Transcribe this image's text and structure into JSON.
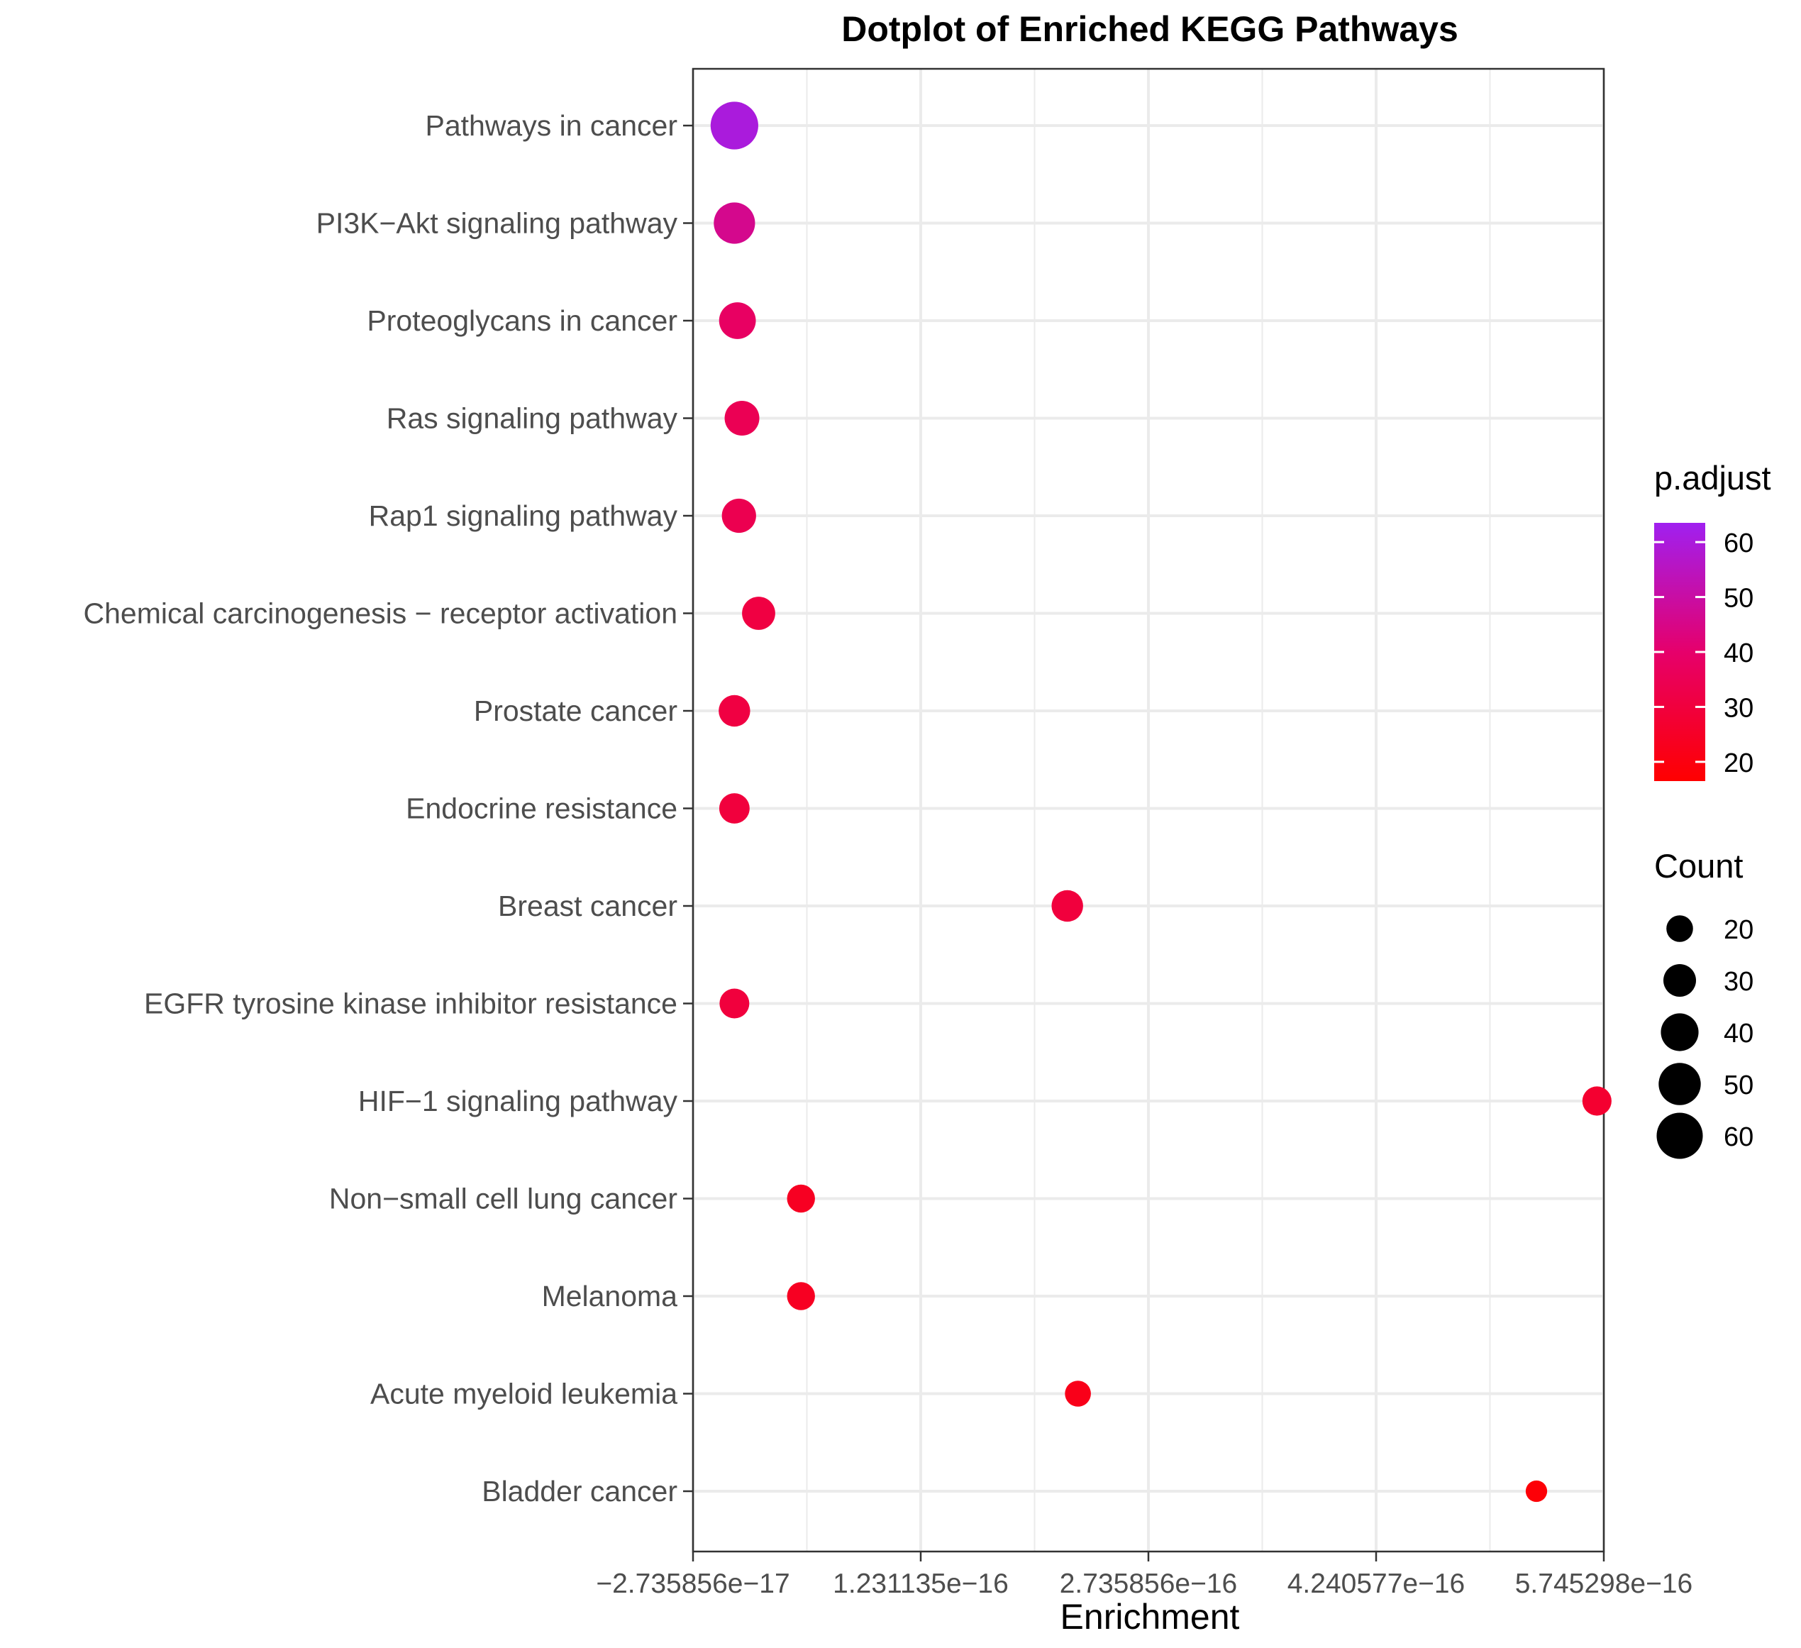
{
  "chart_data": {
    "type": "scatter",
    "title": "Dotplot of Enriched KEGG Pathways",
    "xlabel": "Enrichment",
    "ylabel": "",
    "xlim": [
      -2.735856e-17,
      5.745298e-16
    ],
    "x_ticks": [
      -2.735856e-17,
      1.231135e-16,
      2.735856e-16,
      4.240577e-16,
      5.745298e-16
    ],
    "x_tick_labels": [
      "−2.735856e−17",
      "1.231135e−16",
      "2.735856e−16",
      "4.240577e−16",
      "5.745298e−16"
    ],
    "grid": true,
    "categories": [
      "Pathways in cancer",
      "PI3K−Akt signaling pathway",
      "Proteoglycans in cancer",
      "Ras signaling pathway",
      "Rap1 signaling pathway",
      "Chemical carcinogenesis − receptor activation",
      "Prostate cancer",
      "Endocrine resistance",
      "Breast cancer",
      "EGFR tyrosine kinase inhibitor resistance",
      "HIF−1 signaling pathway",
      "Non−small cell lung cancer",
      "Melanoma",
      "Acute myeloid leukemia",
      "Bladder cancer"
    ],
    "points": [
      {
        "category": "Pathways in cancer",
        "x": 0.0,
        "count": 64,
        "p_adjust": 60
      },
      {
        "category": "PI3K−Akt signaling pathway",
        "x": 0.0,
        "count": 48,
        "p_adjust": 46
      },
      {
        "category": "Proteoglycans in cancer",
        "x": 2e-18,
        "count": 38,
        "p_adjust": 38
      },
      {
        "category": "Ras signaling pathway",
        "x": 5e-18,
        "count": 34,
        "p_adjust": 35
      },
      {
        "category": "Rap1 signaling pathway",
        "x": 3e-18,
        "count": 33,
        "p_adjust": 34
      },
      {
        "category": "Chemical carcinogenesis − receptor activation",
        "x": 1.6e-17,
        "count": 31,
        "p_adjust": 31
      },
      {
        "category": "Prostate cancer",
        "x": 0.0,
        "count": 28,
        "p_adjust": 31
      },
      {
        "category": "Endocrine resistance",
        "x": 0.0,
        "count": 26,
        "p_adjust": 30
      },
      {
        "category": "Breast cancer",
        "x": 2.2e-16,
        "count": 28,
        "p_adjust": 30
      },
      {
        "category": "EGFR tyrosine kinase inhibitor resistance",
        "x": 0.0,
        "count": 25,
        "p_adjust": 30
      },
      {
        "category": "HIF−1 signaling pathway",
        "x": 5.7e-16,
        "count": 24,
        "p_adjust": 27
      },
      {
        "category": "Non−small cell lung cancer",
        "x": 4.4e-17,
        "count": 22,
        "p_adjust": 24
      },
      {
        "category": "Melanoma",
        "x": 4.4e-17,
        "count": 22,
        "p_adjust": 24
      },
      {
        "category": "Acute myeloid leukemia",
        "x": 2.27e-16,
        "count": 19,
        "p_adjust": 22
      },
      {
        "category": "Bladder cancer",
        "x": 5.3e-16,
        "count": 13,
        "p_adjust": 18
      }
    ],
    "color_legend": {
      "title": "p.adjust",
      "ticks": [
        20,
        30,
        40,
        50,
        60
      ],
      "range": [
        16.5,
        63.5
      ],
      "low_color": "#ff0000",
      "mid_color": "#e6006b",
      "high_color": "#a020f0"
    },
    "size_legend": {
      "title": "Count",
      "values": [
        20,
        30,
        40,
        50,
        60
      ]
    }
  }
}
